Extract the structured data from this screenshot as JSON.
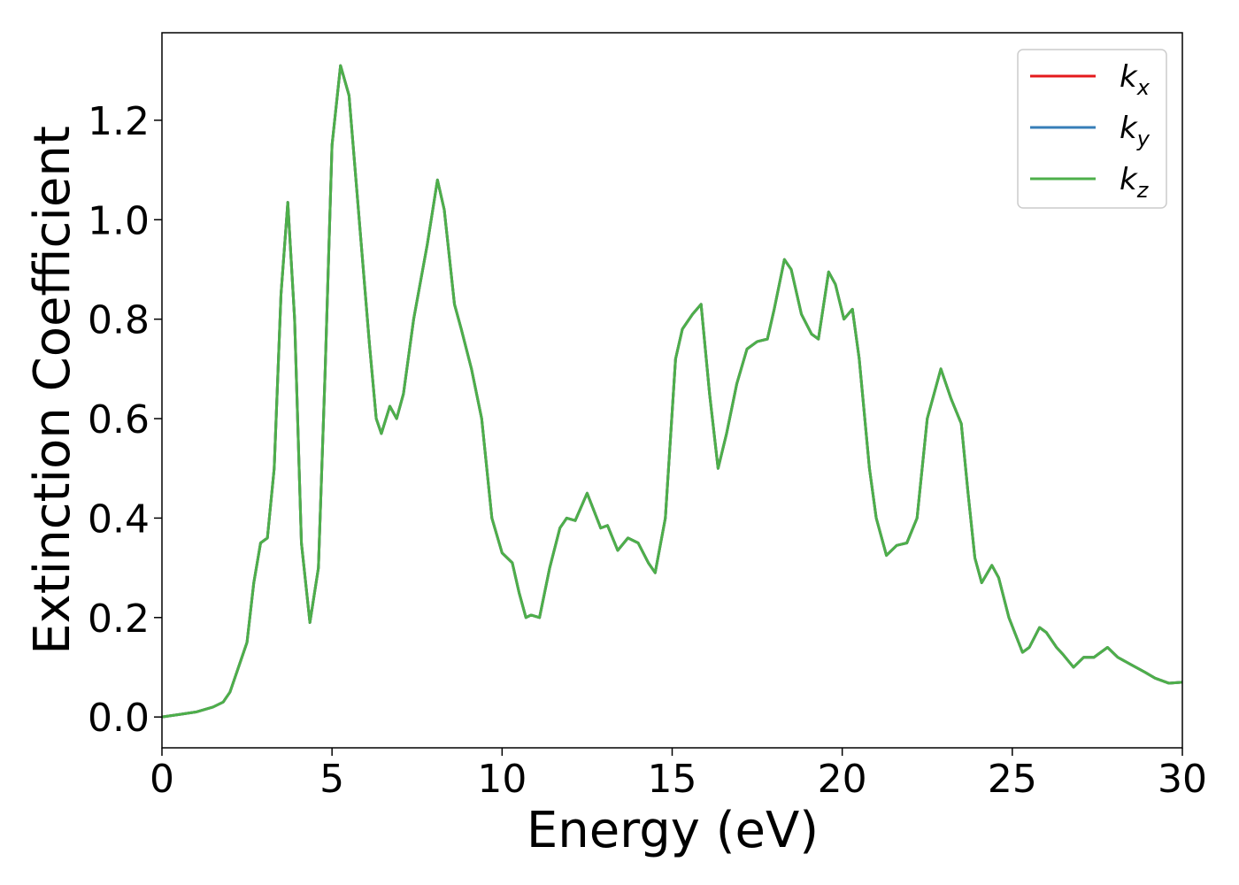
{
  "chart_data": {
    "type": "line",
    "x_label": "Energy (eV)",
    "y_label": "Extinction Coefficient",
    "x": [
      0,
      0.5,
      1.0,
      1.5,
      1.8,
      2.0,
      2.2,
      2.5,
      2.7,
      2.9,
      3.1,
      3.3,
      3.5,
      3.7,
      3.9,
      4.1,
      4.35,
      4.6,
      4.8,
      5.0,
      5.25,
      5.5,
      5.8,
      6.1,
      6.3,
      6.45,
      6.7,
      6.9,
      7.1,
      7.4,
      7.8,
      8.1,
      8.3,
      8.6,
      8.8,
      9.1,
      9.4,
      9.7,
      10.0,
      10.3,
      10.5,
      10.7,
      10.85,
      11.1,
      11.4,
      11.7,
      11.9,
      12.15,
      12.5,
      12.9,
      13.1,
      13.4,
      13.7,
      14.0,
      14.3,
      14.5,
      14.8,
      15.1,
      15.3,
      15.6,
      15.85,
      16.1,
      16.35,
      16.6,
      16.9,
      17.2,
      17.5,
      17.8,
      18.0,
      18.3,
      18.5,
      18.8,
      19.1,
      19.3,
      19.6,
      19.8,
      20.05,
      20.3,
      20.5,
      20.8,
      21.0,
      21.3,
      21.6,
      21.9,
      22.2,
      22.5,
      22.9,
      23.2,
      23.5,
      23.7,
      23.9,
      24.1,
      24.4,
      24.6,
      24.9,
      25.3,
      25.5,
      25.8,
      26.0,
      26.3,
      26.5,
      26.8,
      27.1,
      27.4,
      27.8,
      28.1,
      28.5,
      28.9,
      29.2,
      29.6,
      30.0
    ],
    "series": [
      {
        "name": "kx",
        "color": "#e41a1c",
        "values": [
          0,
          0.005,
          0.01,
          0.02,
          0.03,
          0.05,
          0.09,
          0.15,
          0.27,
          0.35,
          0.36,
          0.5,
          0.85,
          1.035,
          0.8,
          0.35,
          0.19,
          0.3,
          0.7,
          1.15,
          1.31,
          1.25,
          1.0,
          0.75,
          0.6,
          0.57,
          0.625,
          0.6,
          0.65,
          0.8,
          0.95,
          1.08,
          1.02,
          0.83,
          0.78,
          0.7,
          0.6,
          0.4,
          0.33,
          0.31,
          0.25,
          0.2,
          0.205,
          0.2,
          0.3,
          0.38,
          0.4,
          0.395,
          0.45,
          0.38,
          0.385,
          0.335,
          0.36,
          0.35,
          0.31,
          0.29,
          0.4,
          0.72,
          0.78,
          0.81,
          0.83,
          0.65,
          0.5,
          0.57,
          0.67,
          0.74,
          0.755,
          0.76,
          0.82,
          0.92,
          0.9,
          0.81,
          0.77,
          0.76,
          0.895,
          0.87,
          0.8,
          0.82,
          0.72,
          0.5,
          0.4,
          0.325,
          0.345,
          0.35,
          0.4,
          0.6,
          0.7,
          0.64,
          0.59,
          0.45,
          0.32,
          0.27,
          0.305,
          0.28,
          0.2,
          0.13,
          0.14,
          0.18,
          0.17,
          0.14,
          0.125,
          0.1,
          0.12,
          0.12,
          0.14,
          0.12,
          0.105,
          0.09,
          0.078,
          0.068,
          0.07
        ]
      },
      {
        "name": "ky",
        "color": "#377eb8",
        "values": [
          0,
          0.005,
          0.01,
          0.02,
          0.03,
          0.05,
          0.09,
          0.15,
          0.27,
          0.35,
          0.36,
          0.5,
          0.85,
          1.035,
          0.8,
          0.35,
          0.19,
          0.3,
          0.7,
          1.15,
          1.31,
          1.25,
          1.0,
          0.75,
          0.6,
          0.57,
          0.625,
          0.6,
          0.65,
          0.8,
          0.95,
          1.08,
          1.02,
          0.83,
          0.78,
          0.7,
          0.6,
          0.4,
          0.33,
          0.31,
          0.25,
          0.2,
          0.205,
          0.2,
          0.3,
          0.38,
          0.4,
          0.395,
          0.45,
          0.38,
          0.385,
          0.335,
          0.36,
          0.35,
          0.31,
          0.29,
          0.4,
          0.72,
          0.78,
          0.81,
          0.83,
          0.65,
          0.5,
          0.57,
          0.67,
          0.74,
          0.755,
          0.76,
          0.82,
          0.92,
          0.9,
          0.81,
          0.77,
          0.76,
          0.895,
          0.87,
          0.8,
          0.82,
          0.72,
          0.5,
          0.4,
          0.325,
          0.345,
          0.35,
          0.4,
          0.6,
          0.7,
          0.64,
          0.59,
          0.45,
          0.32,
          0.27,
          0.305,
          0.28,
          0.2,
          0.13,
          0.14,
          0.18,
          0.17,
          0.14,
          0.125,
          0.1,
          0.12,
          0.12,
          0.14,
          0.12,
          0.105,
          0.09,
          0.078,
          0.068,
          0.07
        ]
      },
      {
        "name": "kz",
        "color": "#4daf4a",
        "values": [
          0,
          0.005,
          0.01,
          0.02,
          0.03,
          0.05,
          0.09,
          0.15,
          0.27,
          0.35,
          0.36,
          0.5,
          0.85,
          1.035,
          0.8,
          0.35,
          0.19,
          0.3,
          0.7,
          1.15,
          1.31,
          1.25,
          1.0,
          0.75,
          0.6,
          0.57,
          0.625,
          0.6,
          0.65,
          0.8,
          0.95,
          1.08,
          1.02,
          0.83,
          0.78,
          0.7,
          0.6,
          0.4,
          0.33,
          0.31,
          0.25,
          0.2,
          0.205,
          0.2,
          0.3,
          0.38,
          0.4,
          0.395,
          0.45,
          0.38,
          0.385,
          0.335,
          0.36,
          0.35,
          0.31,
          0.29,
          0.4,
          0.72,
          0.78,
          0.81,
          0.83,
          0.65,
          0.5,
          0.57,
          0.67,
          0.74,
          0.755,
          0.76,
          0.82,
          0.92,
          0.9,
          0.81,
          0.77,
          0.76,
          0.895,
          0.87,
          0.8,
          0.82,
          0.72,
          0.5,
          0.4,
          0.325,
          0.345,
          0.35,
          0.4,
          0.6,
          0.7,
          0.64,
          0.59,
          0.45,
          0.32,
          0.27,
          0.305,
          0.28,
          0.2,
          0.13,
          0.14,
          0.18,
          0.17,
          0.14,
          0.125,
          0.1,
          0.12,
          0.12,
          0.14,
          0.12,
          0.105,
          0.09,
          0.078,
          0.068,
          0.07
        ]
      }
    ],
    "xlim": [
      0,
      30
    ],
    "xticks": [
      0,
      5,
      10,
      15,
      20,
      25,
      30
    ],
    "ylim": [
      -0.062,
      1.376
    ],
    "yticks": [
      {
        "value": 0,
        "label": "0.0"
      },
      0.2,
      0.4,
      0.6,
      0.8,
      {
        "value": 1,
        "label": "1.0"
      },
      1.2
    ],
    "legend": "upper right",
    "grid": false
  }
}
